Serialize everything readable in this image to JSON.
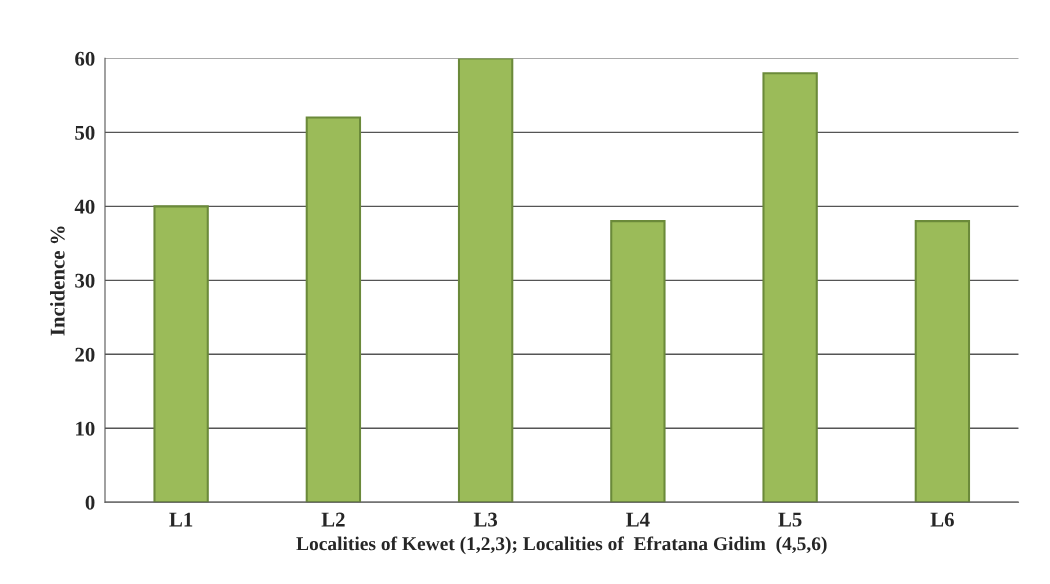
{
  "chart_data": {
    "type": "bar",
    "xlabel": "Localities of Kewet (1,2,3); Localities of  Efratana Gidim  (4,5,6)",
    "ylabel": "Incidence %",
    "categories": [
      "L1",
      "L2",
      "L3",
      "L4",
      "L5",
      "L6"
    ],
    "values": [
      40,
      52,
      60,
      38,
      58,
      38
    ],
    "color": "#9bbb59",
    "ylim": [
      0,
      60
    ],
    "yticks": [
      0,
      10,
      20,
      30,
      40,
      50,
      60
    ],
    "grid": "y",
    "legend": false
  }
}
